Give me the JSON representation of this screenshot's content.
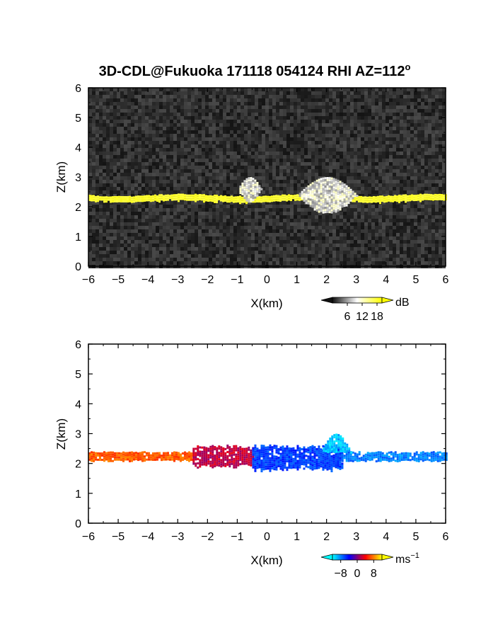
{
  "figure": {
    "title": "3D-CDL@Fukuoka 171118 054124 RHI AZ=112",
    "title_superscript": "o"
  },
  "chart_data": [
    {
      "type": "heatmap",
      "name": "backscatter",
      "xlabel": "X(km)",
      "ylabel": "Z(km)",
      "xlim": [
        -6,
        6
      ],
      "ylim": [
        0,
        6
      ],
      "xticks": [
        "-6",
        "-5",
        "-4",
        "-3",
        "-2",
        "-1",
        "0",
        "1",
        "2",
        "3",
        "4",
        "5",
        "6"
      ],
      "yticks": [
        "0",
        "1",
        "2",
        "3",
        "4",
        "5",
        "6"
      ],
      "background": "noise-gray",
      "features": [
        {
          "kind": "layer",
          "x": [
            -6,
            6
          ],
          "z": [
            2.2,
            2.4
          ],
          "value_db": 18
        },
        {
          "kind": "cloud",
          "x": [
            -1.0,
            -0.2
          ],
          "z": [
            2.2,
            3.0
          ],
          "value_db": 14
        },
        {
          "kind": "cloud",
          "x": [
            1.0,
            3.0
          ],
          "z": [
            1.8,
            3.0
          ],
          "value_db": 14
        }
      ],
      "colorbar": {
        "unit": "dB",
        "ticks": [
          "6",
          "12",
          "18"
        ],
        "range": [
          0,
          20
        ],
        "colors": [
          "#101010",
          "#ffffff",
          "#ffff00"
        ]
      }
    },
    {
      "type": "heatmap",
      "name": "doppler-velocity",
      "xlabel": "X(km)",
      "ylabel": "Z(km)",
      "xlim": [
        -6,
        6
      ],
      "ylim": [
        0,
        6
      ],
      "xticks": [
        "-6",
        "-5",
        "-4",
        "-3",
        "-2",
        "-1",
        "0",
        "1",
        "2",
        "3",
        "4",
        "5",
        "6"
      ],
      "yticks": [
        "0",
        "1",
        "2",
        "3",
        "4",
        "5",
        "6"
      ],
      "features": [
        {
          "kind": "layer",
          "x": [
            -6,
            -2.5
          ],
          "z": [
            2.1,
            2.4
          ],
          "velocity": 7
        },
        {
          "kind": "layer",
          "x": [
            -2.5,
            -0.5
          ],
          "z": [
            1.9,
            2.6
          ],
          "velocity": 2
        },
        {
          "kind": "layer",
          "x": [
            -0.5,
            2.5
          ],
          "z": [
            1.8,
            2.6
          ],
          "velocity": -6
        },
        {
          "kind": "layer",
          "x": [
            2.5,
            6
          ],
          "z": [
            2.1,
            2.4
          ],
          "velocity": -8
        },
        {
          "kind": "cloud",
          "x": [
            1.8,
            2.8
          ],
          "z": [
            2.4,
            3.0
          ],
          "velocity": -10
        }
      ],
      "colorbar": {
        "unit": "ms",
        "unit_superscript": "-1",
        "ticks": [
          "-8",
          "0",
          "8"
        ],
        "range": [
          -12,
          12
        ],
        "colors": [
          "#00ffff",
          "#0000ff",
          "#ff0000",
          "#ffff00"
        ]
      }
    }
  ]
}
